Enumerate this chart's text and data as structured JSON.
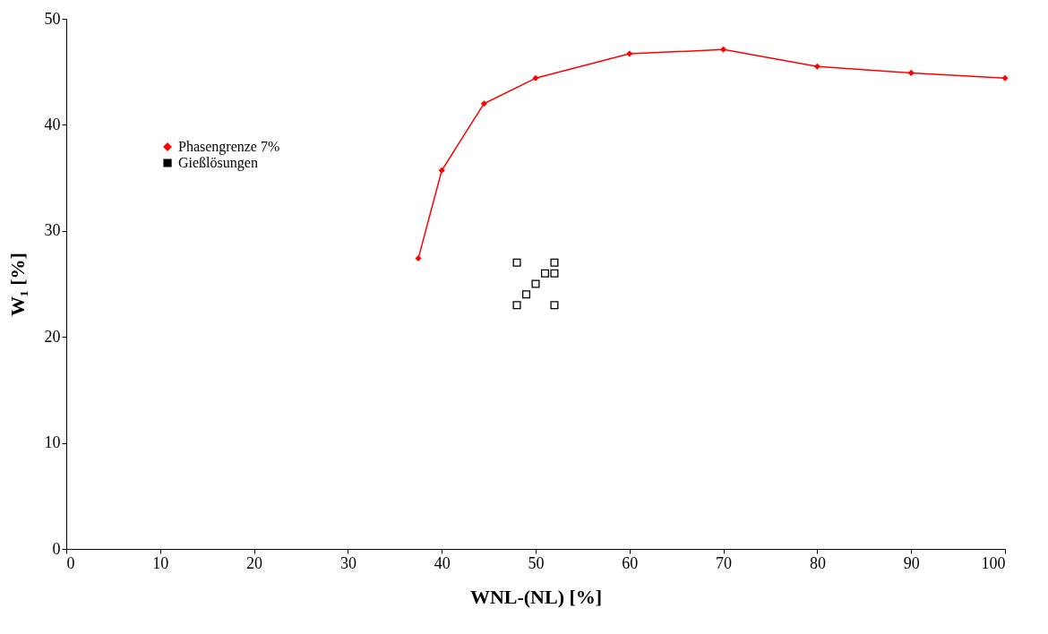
{
  "chart_data": {
    "type": "line",
    "xlabel": "WNL-(NL) [%]",
    "ylabel": "W₁ [%]",
    "xlim": [
      0,
      100
    ],
    "ylim": [
      0,
      50
    ],
    "xticks": [
      0,
      10,
      20,
      30,
      40,
      50,
      60,
      70,
      80,
      90,
      100
    ],
    "yticks": [
      0,
      10,
      20,
      30,
      40,
      50
    ],
    "grid": false,
    "legend": "top left",
    "series": [
      {
        "name": "Phasengrenze 7%",
        "marker": "diamond",
        "color": "#ff0000",
        "x": [
          37.5,
          40,
          44.5,
          50,
          60,
          70,
          80,
          90,
          100
        ],
        "values": [
          27.4,
          35.7,
          42.0,
          44.4,
          46.7,
          47.1,
          45.5,
          44.9,
          44.4
        ]
      },
      {
        "name": "Gießlösungen",
        "type": "scatter",
        "marker": "square",
        "color": "#000000",
        "x": [
          48,
          52,
          51,
          52,
          50,
          49,
          48,
          52
        ],
        "values": [
          27,
          27,
          26,
          26,
          25,
          24,
          23,
          23
        ]
      }
    ]
  }
}
